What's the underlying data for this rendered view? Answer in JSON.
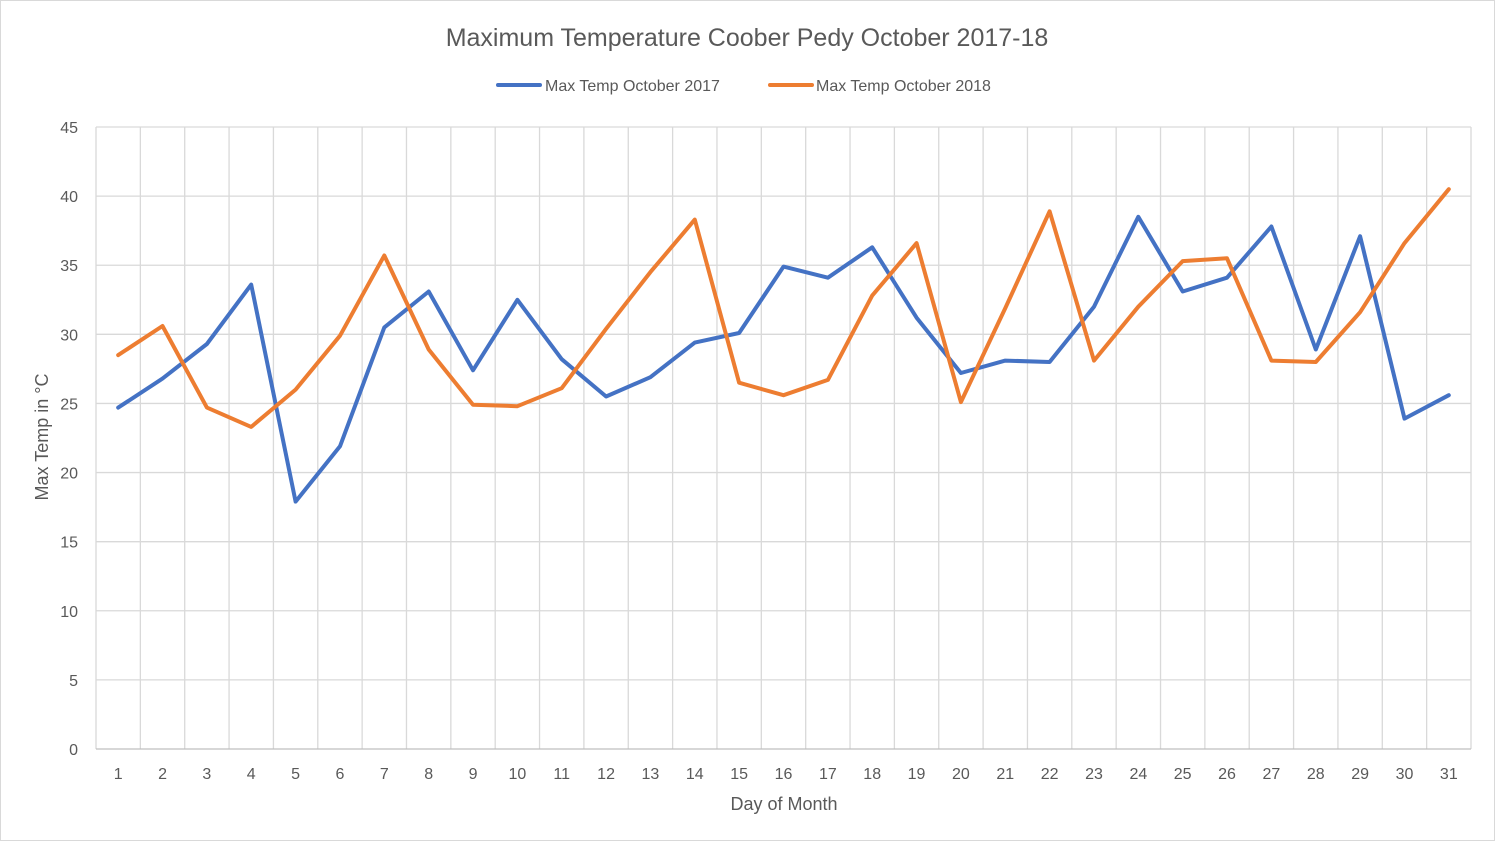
{
  "chart_data": {
    "type": "line",
    "title": "Maximum Temperature Coober Pedy October 2017-18",
    "xlabel": "Day of Month",
    "ylabel": "Max Temp in °C",
    "categories": [
      "1",
      "2",
      "3",
      "4",
      "5",
      "6",
      "7",
      "8",
      "9",
      "10",
      "11",
      "12",
      "13",
      "14",
      "15",
      "16",
      "17",
      "18",
      "19",
      "20",
      "21",
      "22",
      "23",
      "24",
      "25",
      "26",
      "27",
      "28",
      "29",
      "30",
      "31"
    ],
    "ylim": [
      0,
      45
    ],
    "yticks": [
      "0",
      "5",
      "10",
      "15",
      "20",
      "25",
      "30",
      "35",
      "40",
      "45"
    ],
    "grid": true,
    "legend_position": "top",
    "series": [
      {
        "name": "Max Temp October 2017",
        "color": "#4472C4",
        "values": [
          24.7,
          26.8,
          29.3,
          33.6,
          17.9,
          21.9,
          30.5,
          33.1,
          27.4,
          32.5,
          28.2,
          25.5,
          26.9,
          29.4,
          30.1,
          34.9,
          34.1,
          36.3,
          31.2,
          27.2,
          28.1,
          28.0,
          32.0,
          38.5,
          33.1,
          34.1,
          37.8,
          28.9,
          37.1,
          23.9,
          25.6
        ]
      },
      {
        "name": "Max Temp October 2018",
        "color": "#ED7D31",
        "values": [
          28.5,
          30.6,
          24.7,
          23.3,
          26.0,
          29.9,
          35.7,
          28.9,
          24.9,
          24.8,
          26.1,
          30.4,
          34.5,
          38.3,
          26.5,
          25.6,
          26.7,
          32.8,
          36.6,
          25.1,
          31.9,
          38.9,
          28.1,
          32.0,
          35.3,
          35.5,
          28.1,
          28.0,
          31.6,
          36.6,
          40.5
        ]
      }
    ]
  }
}
